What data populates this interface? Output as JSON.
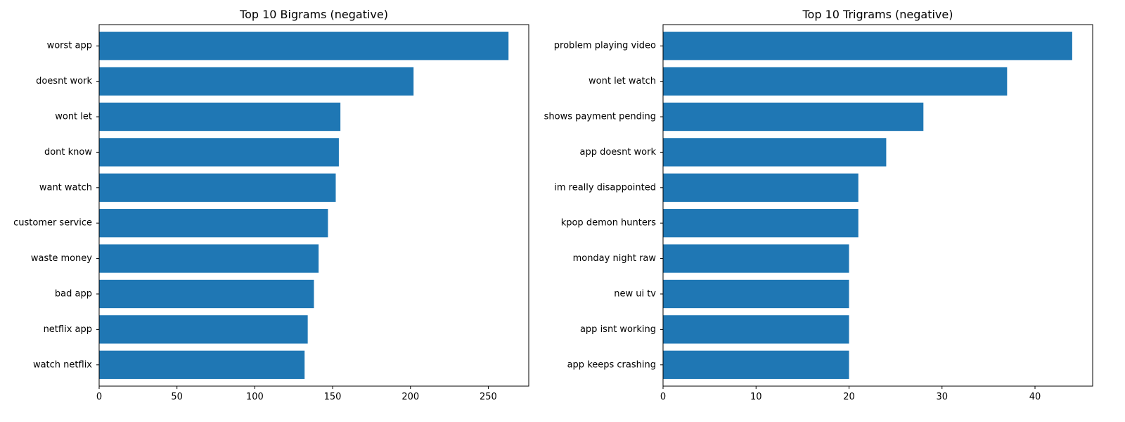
{
  "chart_data": [
    {
      "type": "bar",
      "orientation": "horizontal",
      "title": "Top 10 Bigrams (negative)",
      "xlabel": "",
      "ylabel": "",
      "categories": [
        "worst app",
        "doesnt work",
        "wont let",
        "dont know",
        "want watch",
        "customer service",
        "waste money",
        "bad app",
        "netflix app",
        "watch netflix"
      ],
      "values": [
        263,
        202,
        155,
        154,
        152,
        147,
        141,
        138,
        134,
        132
      ],
      "xlim": [
        0,
        276
      ],
      "xticks": [
        0,
        50,
        100,
        150,
        200,
        250
      ],
      "grid": false,
      "bar_color": "#1f77b4"
    },
    {
      "type": "bar",
      "orientation": "horizontal",
      "title": "Top 10 Trigrams (negative)",
      "xlabel": "",
      "ylabel": "",
      "categories": [
        "problem playing video",
        "wont let watch",
        "shows payment pending",
        "app doesnt work",
        "im really disappointed",
        "kpop demon hunters",
        "monday night raw",
        "new ui tv",
        "app isnt working",
        "app keeps crashing"
      ],
      "values": [
        44,
        37,
        28,
        24,
        21,
        21,
        20,
        20,
        20,
        20
      ],
      "xlim": [
        0,
        46.2
      ],
      "xticks": [
        0,
        10,
        20,
        30,
        40
      ],
      "grid": false,
      "bar_color": "#1f77b4"
    }
  ]
}
